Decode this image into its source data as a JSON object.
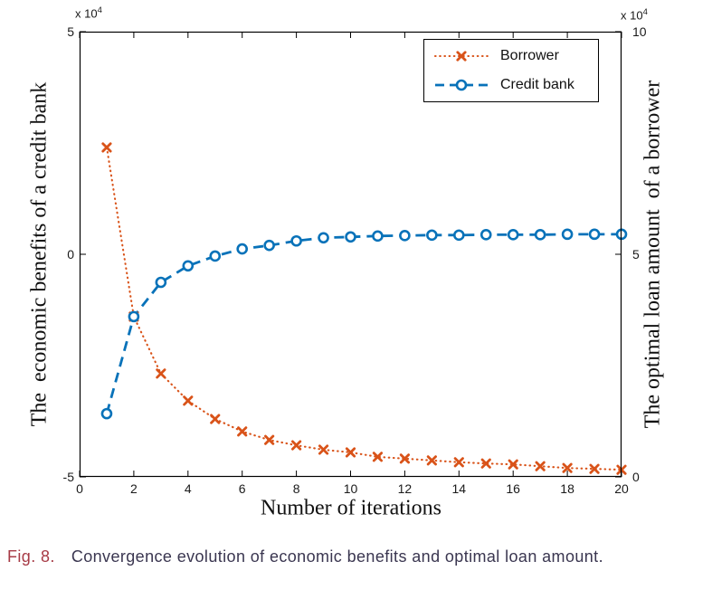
{
  "chart_data": {
    "type": "line",
    "title": "",
    "xlabel": "Number of iterations",
    "x_range": [
      0,
      20
    ],
    "x_ticks": [
      "0",
      "2",
      "4",
      "6",
      "8",
      "10",
      "12",
      "14",
      "16",
      "18",
      "20"
    ],
    "x": [
      1,
      2,
      3,
      4,
      5,
      6,
      7,
      8,
      9,
      10,
      11,
      12,
      13,
      14,
      15,
      16,
      17,
      18,
      19,
      20
    ],
    "grid": false,
    "legend_position": "inside-top-right",
    "left_axis": {
      "label": "The  economic benefits of a credit bank",
      "range": [
        -5,
        5
      ],
      "ticks": [
        "5",
        "0",
        "-5"
      ],
      "exponent_base": "x 10",
      "exponent_power": "4"
    },
    "right_axis": {
      "label": "The optimal loan amount  of a borrower",
      "range": [
        0,
        10
      ],
      "ticks": [
        "10",
        "5",
        "0"
      ],
      "exponent_base": "x 10",
      "exponent_power": "4"
    },
    "series": [
      {
        "name": "Borrower",
        "axis": "left",
        "color": "#d95319",
        "line_style": "dotted",
        "marker": "x",
        "values": [
          2.4,
          -1.4,
          -2.68,
          -3.29,
          -3.7,
          -3.98,
          -4.17,
          -4.29,
          -4.39,
          -4.45,
          -4.55,
          -4.59,
          -4.63,
          -4.67,
          -4.7,
          -4.72,
          -4.76,
          -4.8,
          -4.82,
          -4.84
        ]
      },
      {
        "name": "Credit bank",
        "axis": "right",
        "color": "#0872b9",
        "line_style": "dashed",
        "marker": "circle",
        "values": [
          1.42,
          3.6,
          4.37,
          4.74,
          4.96,
          5.12,
          5.2,
          5.3,
          5.37,
          5.39,
          5.41,
          5.42,
          5.43,
          5.43,
          5.44,
          5.44,
          5.44,
          5.45,
          5.45,
          5.45
        ]
      }
    ]
  },
  "caption": {
    "label": "Fig. 8.",
    "text": "Convergence evolution of economic benefits and optimal loan amount.",
    "label_color": "#a73b46",
    "text_color": "#3a3650"
  }
}
